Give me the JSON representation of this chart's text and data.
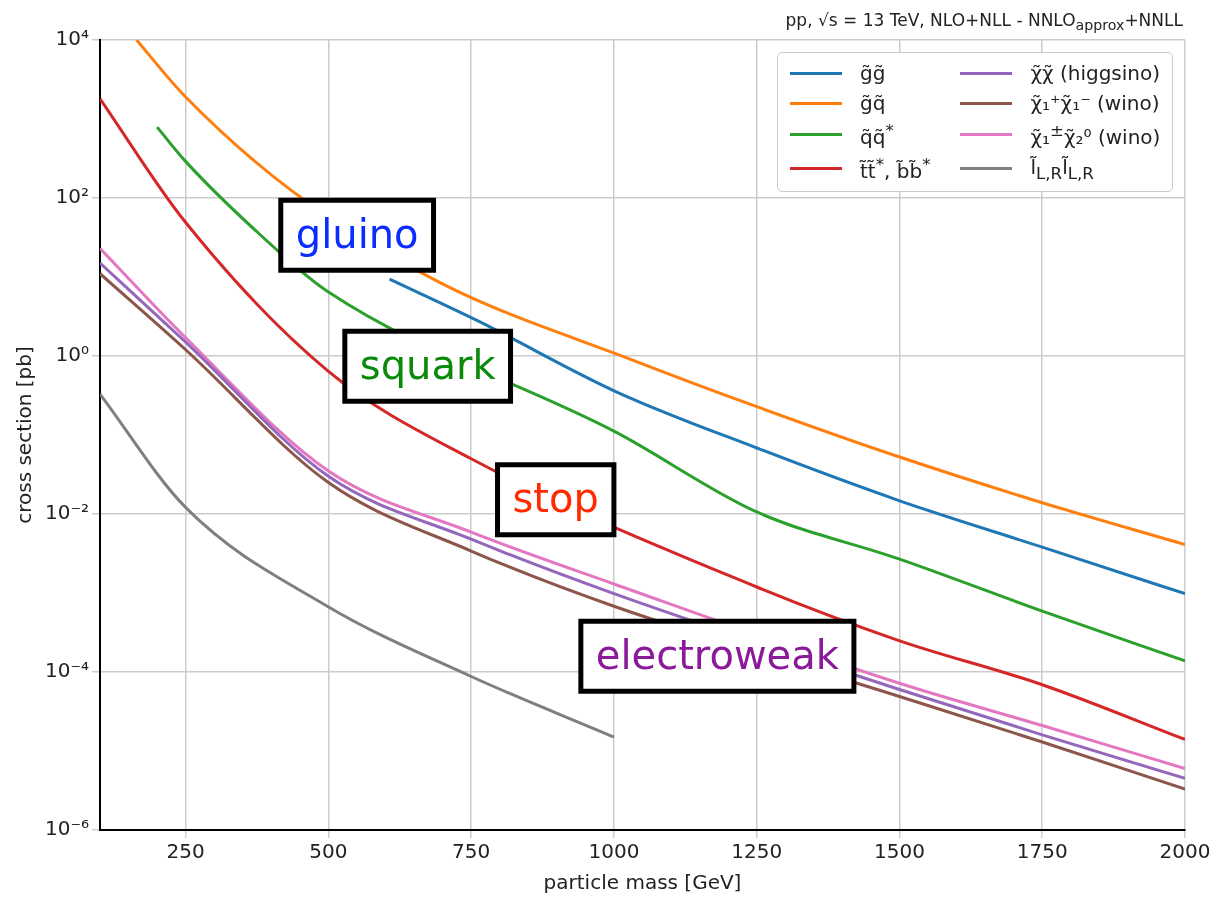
{
  "chart_data": {
    "type": "line",
    "title": "pp, √s = 13 TeV, NLO+NLL - NNLO$_{approx}$+NNLL",
    "xlabel": "particle mass [GeV]",
    "ylabel": "cross section [pb]",
    "xlim": [
      100,
      2000
    ],
    "xticks": [
      250,
      500,
      750,
      1000,
      1250,
      1500,
      1750,
      2000
    ],
    "ylim": [
      1e-06,
      10000
    ],
    "yticks": [
      {
        "value": 1e-06,
        "label": "10⁻⁶"
      },
      {
        "value": 0.0001,
        "label": "10⁻⁴"
      },
      {
        "value": 0.01,
        "label": "10⁻²"
      },
      {
        "value": 1,
        "label": "10⁰"
      },
      {
        "value": 100,
        "label": "10²"
      },
      {
        "value": 10000,
        "label": "10⁴"
      }
    ],
    "log": "y",
    "grid": true,
    "legend": "top right",
    "line_style": "solid",
    "series": [
      {
        "name": "g̃g̃",
        "color": "#1f77b4",
        "x": [
          607,
          761,
          1005,
          1249,
          1499,
          1750,
          2000
        ],
        "values": [
          9.4,
          2.8,
          0.35,
          0.069,
          0.0148,
          0.0038,
          0.00098
        ]
      },
      {
        "name": "g̃q̃",
        "color": "#ff7f0e",
        "x": [
          164,
          247,
          436,
          698,
          1036,
          1249,
          1499,
          1750,
          2000
        ],
        "values": [
          10000,
          2000,
          123,
          8.3,
          0.87,
          0.23,
          0.053,
          0.0139,
          0.0041
        ]
      },
      {
        "name": "q̃q̃$^{*}$",
        "color": "#2ca02c",
        "x": [
          200,
          249,
          381,
          498,
          1005,
          1249,
          1499,
          1750,
          2000
        ],
        "values": [
          790,
          295,
          34,
          6.6,
          0.107,
          0.0107,
          0.0027,
          0.00059,
          0.000138
        ]
      },
      {
        "name": "t̃t̃$^{*}$, b̃b̃$^{*}$",
        "color": "#d62728",
        "x": [
          100,
          249,
          500,
          750,
          1249,
          1499,
          1750,
          2000
        ],
        "values": [
          1800,
          50,
          0.64,
          0.05,
          0.0012,
          0.00025,
          6.9e-05,
          1.4e-05
        ]
      },
      {
        "name": "χ̃χ̃ (higgsino)",
        "color": "#9467bd",
        "x": [
          100,
          250,
          500,
          750,
          1000,
          1500,
          1750,
          2000
        ],
        "values": [
          15,
          1.5,
          0.03,
          0.0048,
          0.00098,
          6e-05,
          1.6e-05,
          4.5e-06
        ]
      },
      {
        "name": "χ̃₁⁺χ̃₁⁻ (wino)",
        "color": "#8c564b",
        "x": [
          100,
          250,
          500,
          750,
          1000,
          1500,
          1750,
          2000
        ],
        "values": [
          11,
          1.2,
          0.025,
          0.0034,
          0.00068,
          4.9e-05,
          1.3e-05,
          3.3e-06
        ]
      },
      {
        "name": "χ̃₁$^{±}$χ̃₂⁰ (wino)",
        "color": "#e377c2",
        "x": [
          100,
          250,
          500,
          750,
          1000,
          1500,
          1750,
          2000
        ],
        "values": [
          23,
          1.7,
          0.035,
          0.0059,
          0.0013,
          7.2e-05,
          2.1e-05,
          6e-06
        ]
      },
      {
        "name": "l̃$_{L,R}$l̃$_{L,R}$",
        "color": "#7f7f7f",
        "x": [
          100,
          249,
          498,
          748,
          1000
        ],
        "values": [
          0.33,
          0.0123,
          0.00068,
          8.9e-05,
          1.5e-05
        ]
      }
    ],
    "annotations": [
      "gluino",
      "squark",
      "stop",
      "electroweak"
    ]
  }
}
